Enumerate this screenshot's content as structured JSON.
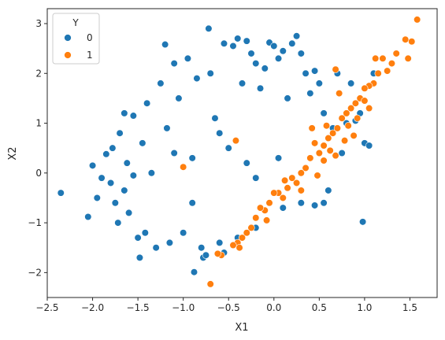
{
  "chart_data": {
    "type": "scatter",
    "title": "",
    "xlabel": "X1",
    "ylabel": "X2",
    "xlim": [
      -2.5,
      1.8
    ],
    "ylim": [
      -2.5,
      3.3
    ],
    "xticks": [
      -2.5,
      -2.0,
      -1.5,
      -1.0,
      -0.5,
      0.0,
      0.5,
      1.0,
      1.5
    ],
    "xtick_labels": [
      "−2.5",
      "−2.0",
      "−1.5",
      "−1.0",
      "−0.5",
      "0.0",
      "0.5",
      "1.0",
      "1.5"
    ],
    "yticks": [
      -2,
      -1,
      0,
      1,
      2,
      3
    ],
    "ytick_labels": [
      "−2",
      "−1",
      "0",
      "1",
      "2",
      "3"
    ],
    "grid": false,
    "legend": {
      "title": "Y",
      "placement": "upper-left",
      "entries": [
        "0",
        "1"
      ]
    },
    "series": [
      {
        "name": "0",
        "color": "#1f77b4",
        "points": [
          [
            -2.35,
            -0.4
          ],
          [
            -2.05,
            -0.88
          ],
          [
            -2.0,
            0.15
          ],
          [
            -1.95,
            -0.5
          ],
          [
            -1.9,
            -0.1
          ],
          [
            -1.85,
            0.38
          ],
          [
            -1.8,
            -0.2
          ],
          [
            -1.78,
            0.5
          ],
          [
            -1.75,
            -0.6
          ],
          [
            -1.72,
            -1.0
          ],
          [
            -1.7,
            0.8
          ],
          [
            -1.65,
            1.2
          ],
          [
            -1.62,
            0.2
          ],
          [
            -1.6,
            -0.8
          ],
          [
            -1.55,
            1.15
          ],
          [
            -1.5,
            -1.3
          ],
          [
            -1.48,
            -1.7
          ],
          [
            -1.45,
            0.6
          ],
          [
            -1.42,
            -1.2
          ],
          [
            -1.4,
            1.4
          ],
          [
            -1.35,
            0.0
          ],
          [
            -1.3,
            -1.5
          ],
          [
            -1.25,
            1.8
          ],
          [
            -1.2,
            2.58
          ],
          [
            -1.18,
            0.9
          ],
          [
            -1.15,
            -1.4
          ],
          [
            -1.1,
            2.2
          ],
          [
            -1.05,
            1.5
          ],
          [
            -1.0,
            -1.2
          ],
          [
            -0.95,
            2.3
          ],
          [
            -0.9,
            0.3
          ],
          [
            -0.88,
            -1.99
          ],
          [
            -0.85,
            1.9
          ],
          [
            -0.8,
            -1.5
          ],
          [
            -0.78,
            -1.7
          ],
          [
            -0.75,
            -1.65
          ],
          [
            -0.72,
            2.9
          ],
          [
            -0.7,
            2.0
          ],
          [
            -0.65,
            1.1
          ],
          [
            -0.6,
            -1.4
          ],
          [
            -0.55,
            2.6
          ],
          [
            -0.5,
            0.5
          ],
          [
            -0.45,
            2.55
          ],
          [
            -0.4,
            2.7
          ],
          [
            -0.35,
            1.8
          ],
          [
            -0.3,
            2.65
          ],
          [
            -0.25,
            2.4
          ],
          [
            -0.2,
            2.2
          ],
          [
            -0.15,
            1.7
          ],
          [
            -0.1,
            2.1
          ],
          [
            -0.05,
            2.62
          ],
          [
            0.0,
            2.55
          ],
          [
            0.05,
            2.3
          ],
          [
            0.1,
            2.45
          ],
          [
            0.15,
            1.5
          ],
          [
            0.2,
            2.6
          ],
          [
            0.25,
            2.75
          ],
          [
            0.3,
            2.4
          ],
          [
            0.35,
            2.0
          ],
          [
            0.4,
            1.6
          ],
          [
            0.45,
            2.05
          ],
          [
            0.5,
            1.8
          ],
          [
            0.55,
            1.2
          ],
          [
            0.6,
            -0.35
          ],
          [
            0.65,
            0.9
          ],
          [
            0.7,
            2.0
          ],
          [
            0.75,
            0.4
          ],
          [
            0.8,
            1.0
          ],
          [
            0.85,
            1.8
          ],
          [
            0.9,
            1.05
          ],
          [
            0.95,
            1.2
          ],
          [
            1.0,
            0.6
          ],
          [
            1.05,
            0.55
          ],
          [
            0.98,
            -0.98
          ],
          [
            1.1,
            2.0
          ],
          [
            0.1,
            -0.7
          ],
          [
            0.3,
            -0.6
          ],
          [
            0.45,
            -0.65
          ],
          [
            0.55,
            -0.6
          ],
          [
            -0.2,
            -1.1
          ],
          [
            -0.4,
            -1.3
          ],
          [
            -0.55,
            -1.6
          ],
          [
            -1.65,
            -0.35
          ],
          [
            -1.55,
            -0.05
          ],
          [
            -0.3,
            0.2
          ],
          [
            -0.2,
            -0.1
          ],
          [
            0.05,
            0.3
          ],
          [
            -0.6,
            0.8
          ],
          [
            -0.9,
            -0.6
          ],
          [
            -1.1,
            0.4
          ]
        ]
      },
      {
        "name": "1",
        "color": "#ff7f0e",
        "points": [
          [
            1.58,
            3.08
          ],
          [
            1.45,
            2.68
          ],
          [
            1.52,
            2.64
          ],
          [
            1.35,
            2.4
          ],
          [
            1.48,
            2.3
          ],
          [
            1.3,
            2.2
          ],
          [
            1.2,
            2.3
          ],
          [
            1.25,
            2.05
          ],
          [
            1.15,
            2.0
          ],
          [
            1.1,
            1.8
          ],
          [
            1.12,
            2.3
          ],
          [
            1.05,
            1.75
          ],
          [
            1.0,
            1.7
          ],
          [
            0.95,
            1.5
          ],
          [
            0.9,
            1.4
          ],
          [
            1.0,
            1.45
          ],
          [
            0.85,
            1.3
          ],
          [
            0.8,
            1.2
          ],
          [
            0.75,
            1.1
          ],
          [
            0.82,
            0.95
          ],
          [
            0.7,
            0.9
          ],
          [
            0.65,
            0.8
          ],
          [
            0.6,
            0.7
          ],
          [
            0.72,
            1.6
          ],
          [
            0.68,
            2.08
          ],
          [
            0.55,
            0.55
          ],
          [
            0.5,
            0.4
          ],
          [
            0.45,
            0.6
          ],
          [
            0.4,
            0.3
          ],
          [
            0.35,
            0.1
          ],
          [
            0.3,
            0.0
          ],
          [
            0.25,
            -0.2
          ],
          [
            0.2,
            -0.1
          ],
          [
            0.15,
            -0.3
          ],
          [
            0.1,
            -0.5
          ],
          [
            0.05,
            -0.4
          ],
          [
            0.0,
            -0.4
          ],
          [
            -0.05,
            -0.6
          ],
          [
            -0.1,
            -0.75
          ],
          [
            -0.15,
            -0.7
          ],
          [
            -0.2,
            -0.9
          ],
          [
            -0.25,
            -1.1
          ],
          [
            -0.3,
            -1.2
          ],
          [
            -0.35,
            -1.3
          ],
          [
            -0.4,
            -1.4
          ],
          [
            -0.45,
            -1.45
          ],
          [
            -0.38,
            -1.5
          ],
          [
            -0.58,
            -1.65
          ],
          [
            -0.62,
            -1.62
          ],
          [
            -0.7,
            -2.23
          ],
          [
            -0.42,
            0.65
          ],
          [
            -1.0,
            0.12
          ],
          [
            0.42,
            0.9
          ],
          [
            0.55,
            0.25
          ],
          [
            0.48,
            -0.05
          ],
          [
            0.62,
            0.45
          ],
          [
            0.78,
            0.65
          ],
          [
            0.88,
            0.75
          ],
          [
            0.3,
            -0.35
          ],
          [
            0.12,
            -0.15
          ],
          [
            -0.08,
            -0.95
          ],
          [
            0.58,
            0.95
          ],
          [
            0.92,
            1.1
          ],
          [
            1.05,
            1.3
          ],
          [
            0.68,
            0.35
          ]
        ]
      }
    ]
  }
}
